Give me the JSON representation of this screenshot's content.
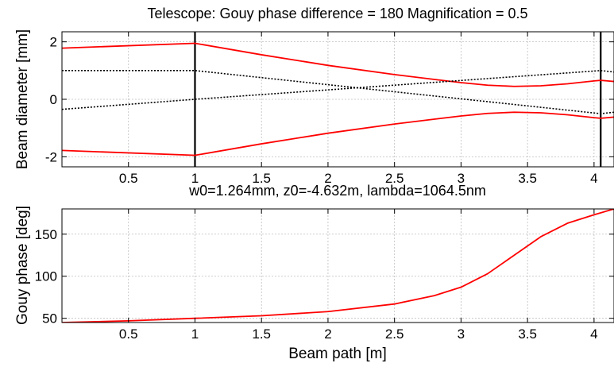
{
  "chart_data": [
    {
      "type": "line",
      "title": "Telescope: Gouy phase difference = 180 Magnification = 0.5",
      "xlabel": "",
      "ylabel": "Beam diameter [mm]",
      "xlim": [
        0,
        4.15
      ],
      "ylim": [
        -2.35,
        2.35
      ],
      "x_ticks": [
        0.5,
        1,
        1.5,
        2,
        2.5,
        3,
        3.5,
        4
      ],
      "x_tick_labels": [
        "0.5",
        "1",
        "1.5",
        "2",
        "2.5",
        "3",
        "3.5",
        "4"
      ],
      "y_ticks": [
        -2,
        0,
        2
      ],
      "y_tick_labels": [
        "-2",
        "0",
        "2"
      ],
      "grid": true,
      "colors": {
        "beam": "#ff0000",
        "ray": "#000000",
        "element": "#000000",
        "grid": "#bdbdbd"
      },
      "elements_x": [
        1.0,
        4.05
      ],
      "series": [
        {
          "style": "solid-red",
          "x": [
            0,
            1,
            1.5,
            2,
            2.5,
            2.8,
            3.0,
            3.2,
            3.4,
            3.6,
            3.8,
            4.0,
            4.05,
            4.15
          ],
          "y": [
            1.78,
            1.95,
            1.55,
            1.18,
            0.86,
            0.69,
            0.58,
            0.49,
            0.45,
            0.47,
            0.54,
            0.64,
            0.66,
            0.62
          ]
        },
        {
          "style": "solid-red",
          "x": [
            0,
            1,
            1.5,
            2,
            2.5,
            2.8,
            3.0,
            3.2,
            3.4,
            3.6,
            3.8,
            4.0,
            4.05,
            4.15
          ],
          "y": [
            -1.78,
            -1.95,
            -1.55,
            -1.18,
            -0.86,
            -0.69,
            -0.58,
            -0.49,
            -0.45,
            -0.47,
            -0.54,
            -0.64,
            -0.66,
            -0.62
          ]
        },
        {
          "style": "dotted-black",
          "x": [
            0,
            1,
            4.05,
            4.15
          ],
          "y": [
            1.0,
            1.0,
            -0.5,
            -0.45
          ]
        },
        {
          "style": "dotted-black",
          "x": [
            0,
            1,
            4.05,
            4.15
          ],
          "y": [
            -0.35,
            0.0,
            1.0,
            0.95
          ]
        }
      ]
    },
    {
      "type": "line",
      "title": "w0=1.264mm, z0=-4.632m, lambda=1064.5nm",
      "xlabel": "Beam path [m]",
      "ylabel": "Gouy phase [deg]",
      "xlim": [
        0,
        4.15
      ],
      "ylim": [
        45,
        180
      ],
      "x_ticks": [
        0.5,
        1,
        1.5,
        2,
        2.5,
        3,
        3.5,
        4
      ],
      "x_tick_labels": [
        "0.5",
        "1",
        "1.5",
        "2",
        "2.5",
        "3",
        "3.5",
        "4"
      ],
      "y_ticks": [
        50,
        100,
        150
      ],
      "y_tick_labels": [
        "50",
        "100",
        "150"
      ],
      "grid": true,
      "colors": {
        "line": "#ff0000",
        "grid": "#bdbdbd"
      },
      "series": [
        {
          "style": "solid-red",
          "x": [
            0,
            0.5,
            1.0,
            1.5,
            2.0,
            2.5,
            2.8,
            3.0,
            3.2,
            3.4,
            3.6,
            3.8,
            4.0,
            4.15
          ],
          "y": [
            45,
            47,
            50,
            53,
            58,
            67,
            77,
            87,
            103,
            125,
            147,
            163,
            173,
            180
          ]
        }
      ]
    }
  ]
}
